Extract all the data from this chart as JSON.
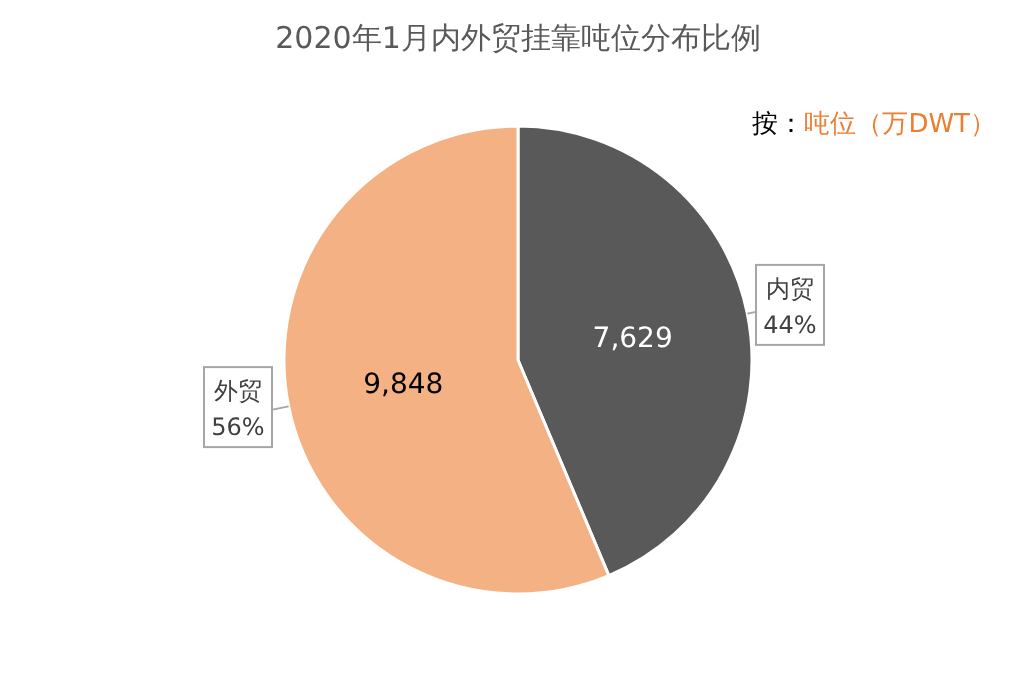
{
  "chart_data": {
    "type": "pie",
    "title": "2020年1月内外贸挂靠吨位分布比例",
    "annotations": [
      "按：吨位（万DWT）",
      {
        "text": "44%",
        "x": "内贸"
      },
      {
        "text": "56%",
        "x": "外贸"
      }
    ],
    "categories": [
      "内贸",
      "外贸"
    ],
    "values": [
      7629,
      9848
    ],
    "value_labels": [
      "7,629",
      "9,848"
    ],
    "colors": [
      "#595959",
      "#f4b183"
    ]
  }
}
